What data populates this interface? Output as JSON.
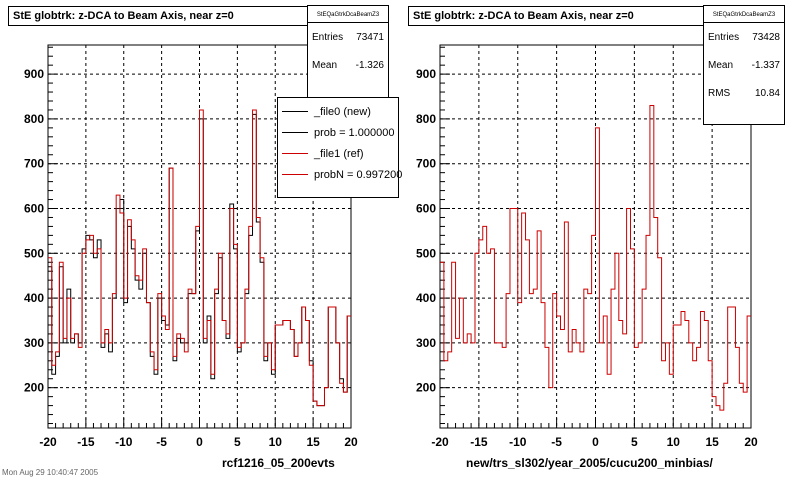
{
  "chart_data": [
    {
      "type": "histogram",
      "title": "StE globtrk: z-DCA to Beam Axis, near z=0",
      "xlabel": "rcf1216_05_200evts",
      "xlim": [
        -20,
        20
      ],
      "ylim": [
        110,
        965
      ],
      "x_ticks": [
        "-20",
        "-15",
        "-10",
        "-5",
        "0",
        "5",
        "10",
        "15",
        "20"
      ],
      "y_ticks": [
        "200",
        "300",
        "400",
        "500",
        "600",
        "700",
        "800",
        "900"
      ],
      "grid": true,
      "stats": {
        "name": "StEQaGtrkDcaBeamZ3",
        "entries_label": "Entries",
        "entries": "73471",
        "mean_label": "Mean",
        "mean": "-1.326"
      },
      "legend": {
        "position": "top-right",
        "entries": [
          {
            "label": "_file0 (new)",
            "color": "#000000"
          },
          {
            "label": "prob = 1.000000",
            "color": "#000000"
          },
          {
            "label": "_file1 (ref)",
            "color": "#cc0000"
          },
          {
            "label": "probN = 0.997200",
            "color": "#cc0000"
          }
        ]
      },
      "series": [
        {
          "name": "_file0 (new)",
          "color": "#000000",
          "bin_edges": [
            -20,
            20
          ],
          "values": [
            470,
            230,
            270,
            470,
            300,
            420,
            300,
            320,
            300,
            510,
            540,
            530,
            490,
            530,
            290,
            320,
            280,
            400,
            600,
            620,
            390,
            560,
            510,
            440,
            420,
            500,
            390,
            270,
            230,
            400,
            350,
            340,
            690,
            260,
            310,
            300,
            300,
            410,
            410,
            550,
            800,
            300,
            360,
            220,
            410,
            490,
            350,
            310,
            610,
            510,
            280,
            300,
            410,
            540,
            810,
            570,
            480,
            260,
            300,
            230,
            340,
            340,
            350,
            350,
            330,
            270,
            300,
            380,
            350,
            260,
            170,
            160,
            160,
            200,
            380,
            380,
            300,
            220,
            190,
            360
          ]
        },
        {
          "name": "_file1 (ref)",
          "color": "#cc0000",
          "bin_edges": [
            -20,
            20
          ],
          "values": [
            490,
            250,
            280,
            480,
            310,
            400,
            310,
            320,
            290,
            500,
            530,
            540,
            500,
            510,
            300,
            330,
            300,
            410,
            630,
            590,
            400,
            575,
            530,
            450,
            440,
            510,
            390,
            280,
            240,
            410,
            360,
            330,
            690,
            270,
            320,
            310,
            280,
            420,
            410,
            560,
            820,
            310,
            350,
            230,
            420,
            500,
            350,
            320,
            600,
            520,
            290,
            300,
            420,
            560,
            820,
            580,
            490,
            270,
            300,
            240,
            340,
            340,
            350,
            350,
            330,
            270,
            300,
            380,
            350,
            250,
            170,
            160,
            160,
            200,
            380,
            380,
            300,
            210,
            190,
            360
          ]
        }
      ]
    },
    {
      "type": "histogram",
      "title": "StE globtrk: z-DCA to Beam Axis, near z=0",
      "xlabel": "new/trs_sl302/year_2005/cucu200_minbias/",
      "xlim": [
        -20,
        20
      ],
      "ylim": [
        110,
        965
      ],
      "x_ticks": [
        "-20",
        "-15",
        "-10",
        "-5",
        "0",
        "5",
        "10",
        "15",
        "20"
      ],
      "y_ticks": [
        "200",
        "300",
        "400",
        "500",
        "600",
        "700",
        "800",
        "900"
      ],
      "grid": true,
      "stats": {
        "name": "StEQaGtrkDcaBeamZ3",
        "entries_label": "Entries",
        "entries": "73428",
        "mean_label": "Mean",
        "mean": "-1.337",
        "rms_label": "RMS",
        "rms": "10.84"
      },
      "series": [
        {
          "color": "#cc0000",
          "bin_edges": [
            -20,
            20
          ],
          "values": [
            480,
            260,
            280,
            480,
            310,
            400,
            300,
            320,
            300,
            500,
            530,
            560,
            500,
            510,
            300,
            300,
            290,
            410,
            600,
            600,
            390,
            590,
            530,
            410,
            420,
            550,
            390,
            290,
            200,
            410,
            360,
            330,
            570,
            280,
            330,
            300,
            280,
            420,
            410,
            540,
            780,
            300,
            360,
            230,
            420,
            500,
            350,
            320,
            600,
            510,
            290,
            300,
            420,
            540,
            830,
            580,
            490,
            260,
            300,
            230,
            340,
            340,
            370,
            350,
            300,
            260,
            290,
            370,
            350,
            260,
            180,
            160,
            150,
            210,
            380,
            380,
            290,
            210,
            190,
            360
          ]
        }
      ]
    }
  ],
  "timestamp": "Mon Aug 29 10:40:47 2005"
}
